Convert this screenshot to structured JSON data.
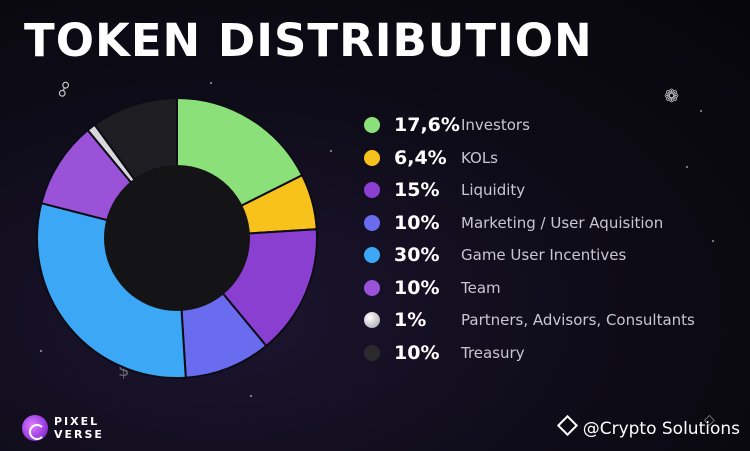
{
  "chart_data": {
    "type": "pie",
    "title": "TOKEN DISTRIBUTION",
    "donut": true,
    "legend_position": "right",
    "slices": [
      {
        "name": "Investors",
        "value": 17.6,
        "label": "17,6%",
        "color": "#8be07a"
      },
      {
        "name": "KOLs",
        "value": 6.4,
        "label": "6,4%",
        "color": "#f7c21c"
      },
      {
        "name": "Liquidity",
        "value": 15,
        "label": "15%",
        "color": "#8a3fd0"
      },
      {
        "name": "Marketing / User Aquisition",
        "value": 10,
        "label": "10%",
        "color": "#6a6cf0"
      },
      {
        "name": "Game User Incentives",
        "value": 30,
        "label": "30%",
        "color": "#3ba7f5"
      },
      {
        "name": "Team",
        "value": 10,
        "label": "10%",
        "color": "#9a52d8"
      },
      {
        "name": "Partners, Advisors, Consultants",
        "value": 1,
        "label": "1%",
        "color": "#d8d8dc"
      },
      {
        "name": "Treasury",
        "value": 10,
        "label": "10%",
        "color": "#1e1e22"
      }
    ]
  },
  "branding": {
    "logo_line1": "PIXEL",
    "logo_line2": "VERSE",
    "watermark": "@Crypto Solutions"
  },
  "colors": {
    "background": "#0d0b16",
    "donut_hole": "#141416"
  }
}
